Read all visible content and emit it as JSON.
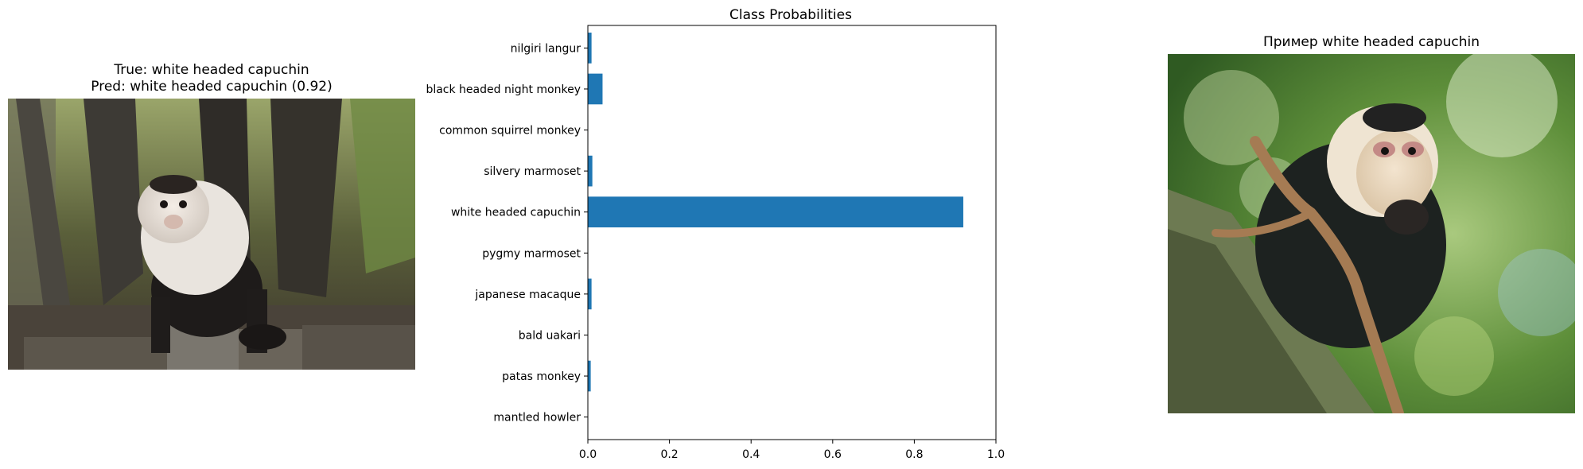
{
  "left_panel": {
    "title_line1": "True: white headed capuchin",
    "title_line2": "Pred: white headed capuchin (0.92)",
    "image_subject": "white-faced capuchin monkey sitting on a tree stump in a forest"
  },
  "right_panel": {
    "title": "Пример white headed capuchin",
    "image_subject": "white-faced capuchin monkey holding a branch with green bokeh background"
  },
  "chart_data": {
    "type": "bar",
    "orientation": "horizontal",
    "title": "Class Probabilities",
    "xlabel": "",
    "ylabel": "",
    "xlim": [
      0,
      1.0
    ],
    "xticks": [
      "0.0",
      "0.2",
      "0.4",
      "0.6",
      "0.8",
      "1.0"
    ],
    "categories": [
      "mantled howler",
      "patas monkey",
      "bald uakari",
      "japanese macaque",
      "pygmy marmoset",
      "white headed capuchin",
      "silvery marmoset",
      "common squirrel monkey",
      "black headed night monkey",
      "nilgiri langur"
    ],
    "values": [
      0.0,
      0.007,
      0.0,
      0.009,
      0.001,
      0.92,
      0.011,
      0.001,
      0.036,
      0.009
    ],
    "bar_color": "#1f77b4",
    "grid": false
  }
}
